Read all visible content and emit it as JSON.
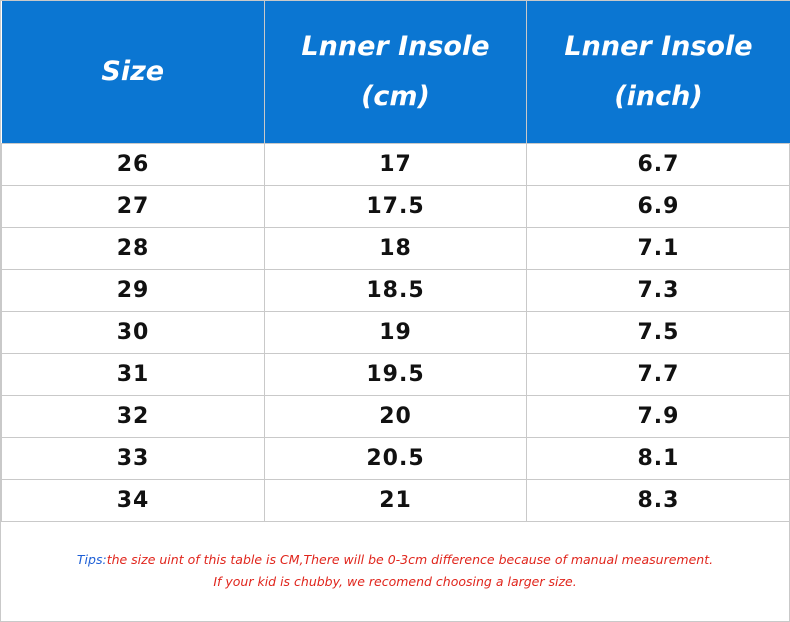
{
  "table": {
    "header": [
      [
        "Size"
      ],
      [
        "Lnner Insole",
        "(cm)"
      ],
      [
        "Lnner Insole",
        "(inch)"
      ]
    ],
    "rows": [
      [
        26,
        17,
        6.7
      ],
      [
        27,
        17.5,
        6.9
      ],
      [
        28,
        18,
        7.1
      ],
      [
        29,
        18.5,
        7.3
      ],
      [
        30,
        19,
        7.5
      ],
      [
        31,
        19.5,
        7.7
      ],
      [
        32,
        20,
        7.9
      ],
      [
        33,
        20.5,
        8.1
      ],
      [
        34,
        21,
        8.3
      ]
    ]
  },
  "tips": {
    "label": "Tips:",
    "lines": [
      "the size uint of this table is CM,There will be 0-3cm difference because of manual measurement.",
      "If your kid is chubby, we recomend choosing a larger size."
    ]
  }
}
